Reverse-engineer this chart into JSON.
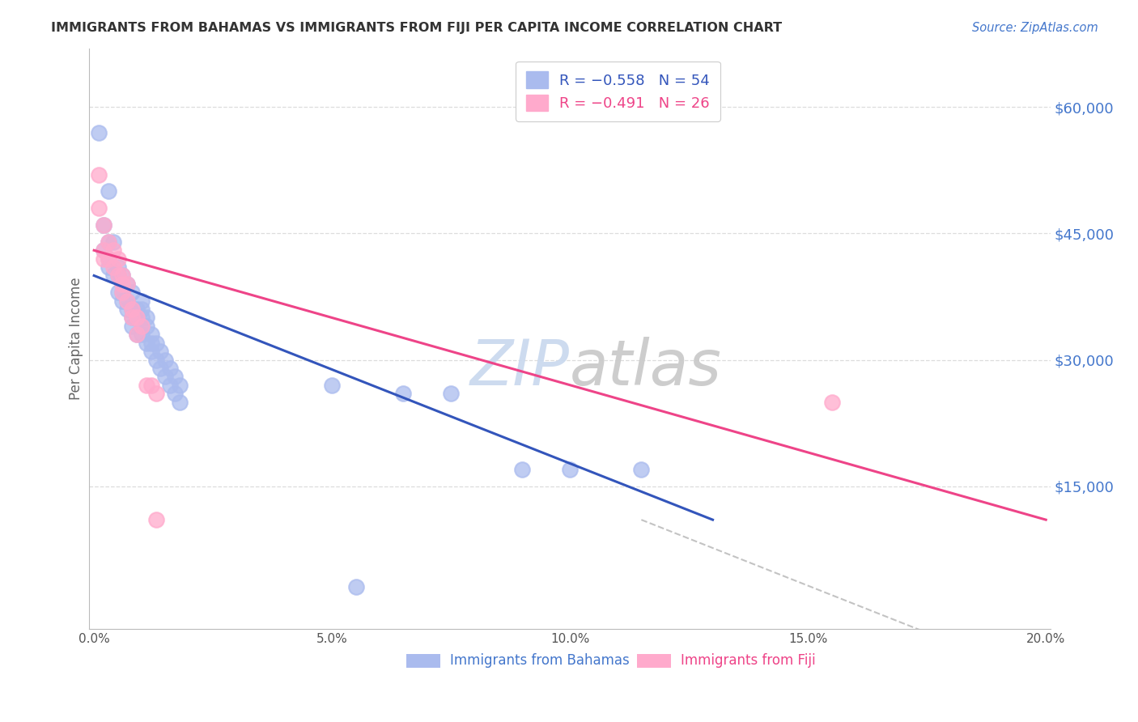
{
  "title": "IMMIGRANTS FROM BAHAMAS VS IMMIGRANTS FROM FIJI PER CAPITA INCOME CORRELATION CHART",
  "source": "Source: ZipAtlas.com",
  "ylabel": "Per Capita Income",
  "ytick_labels": [
    "$15,000",
    "$30,000",
    "$45,000",
    "$60,000"
  ],
  "ytick_values": [
    15000,
    30000,
    45000,
    60000
  ],
  "ylim": [
    -2000,
    67000
  ],
  "xlim": [
    -0.001,
    0.201
  ],
  "xtick_values": [
    0.0,
    0.05,
    0.1,
    0.15,
    0.2
  ],
  "xtick_labels": [
    "0.0%",
    "5.0%",
    "10.0%",
    "15.0%",
    "20.0%"
  ],
  "legend_label1": "R = −0.558   N = 54",
  "legend_label2": "R = −0.491   N = 26",
  "scatter_color1": "#AABBEE",
  "scatter_color2": "#FFAACC",
  "line_color1": "#3355BB",
  "line_color2": "#EE4488",
  "watermark_color": "#C8D8EE",
  "background_color": "#FFFFFF",
  "grid_color": "#DDDDDD",
  "ytick_color": "#4477CC",
  "title_color": "#333333",
  "bahamas_x": [
    0.001,
    0.003,
    0.002,
    0.002,
    0.003,
    0.003,
    0.003,
    0.004,
    0.004,
    0.005,
    0.005,
    0.005,
    0.006,
    0.006,
    0.006,
    0.007,
    0.007,
    0.007,
    0.008,
    0.008,
    0.008,
    0.008,
    0.009,
    0.009,
    0.009,
    0.01,
    0.01,
    0.01,
    0.01,
    0.01,
    0.011,
    0.011,
    0.011,
    0.012,
    0.012,
    0.012,
    0.013,
    0.013,
    0.014,
    0.014,
    0.015,
    0.015,
    0.016,
    0.016,
    0.017,
    0.017,
    0.018,
    0.018,
    0.05,
    0.065,
    0.075,
    0.09,
    0.1,
    0.115
  ],
  "bahamas_y": [
    57000,
    50000,
    46000,
    43000,
    44000,
    42000,
    41000,
    44000,
    40000,
    41000,
    40000,
    38000,
    40000,
    38000,
    37000,
    39000,
    37000,
    36000,
    38000,
    36000,
    35000,
    34000,
    36000,
    35000,
    33000,
    37000,
    36000,
    35000,
    34000,
    33000,
    35000,
    34000,
    32000,
    33000,
    32000,
    31000,
    32000,
    30000,
    31000,
    29000,
    30000,
    28000,
    29000,
    27000,
    28000,
    26000,
    27000,
    25000,
    27000,
    26000,
    26000,
    17000,
    17000,
    17000
  ],
  "fiji_x": [
    0.001,
    0.001,
    0.002,
    0.002,
    0.002,
    0.003,
    0.003,
    0.004,
    0.004,
    0.005,
    0.005,
    0.006,
    0.006,
    0.006,
    0.007,
    0.007,
    0.008,
    0.008,
    0.009,
    0.009,
    0.01,
    0.011,
    0.012,
    0.013,
    0.155,
    0.013
  ],
  "fiji_y": [
    48000,
    52000,
    43000,
    46000,
    42000,
    44000,
    42000,
    43000,
    41000,
    42000,
    40000,
    40000,
    39000,
    38000,
    39000,
    37000,
    36000,
    35000,
    35000,
    33000,
    34000,
    27000,
    27000,
    26000,
    25000,
    11000
  ],
  "bahamas_line_x": [
    0.0,
    0.13
  ],
  "bahamas_line_y": [
    40000,
    11000
  ],
  "fiji_line_x": [
    0.0,
    0.2
  ],
  "fiji_line_y": [
    43000,
    11000
  ],
  "dashed_line_x": [
    0.115,
    0.2
  ],
  "dashed_line_y": [
    11000,
    -8000
  ]
}
